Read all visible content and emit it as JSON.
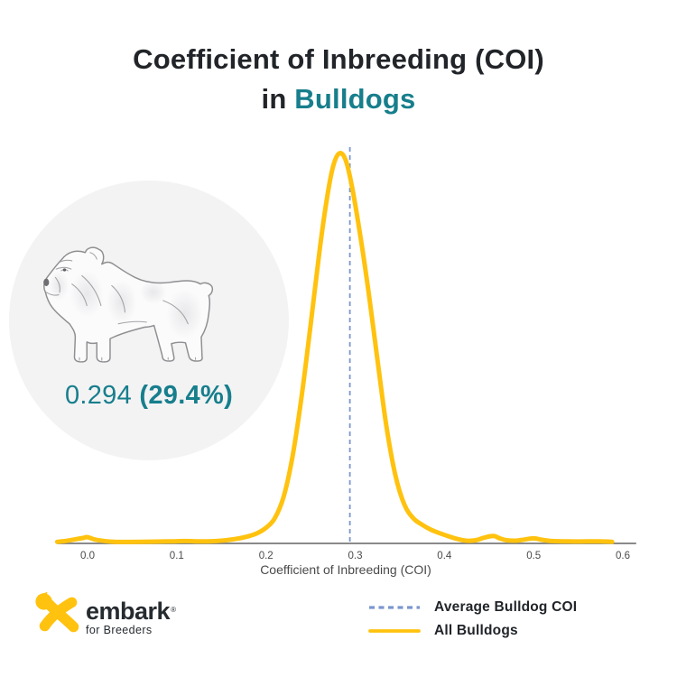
{
  "title": {
    "line1": "Coefficient of Inbreeding (COI)",
    "line2_prefix": "in ",
    "line2_breed": "Bulldogs"
  },
  "coi_badge": {
    "value": "0.294 ",
    "percent": "(29.4%)"
  },
  "chart_data": {
    "type": "line",
    "subtype": "density-curve",
    "title": "Coefficient of Inbreeding (COI) in Bulldogs",
    "xlabel": "Coefficient of Inbreeding (COI)",
    "ylabel": "",
    "grid": false,
    "legend_position": "bottom-right",
    "xlim": [
      -0.034,
      0.615
    ],
    "x_ticks": [
      0.0,
      0.1,
      0.2,
      0.3,
      0.4,
      0.5,
      0.6
    ],
    "x_tick_labels": [
      "0.0",
      "0.1",
      "0.2",
      "0.3",
      "0.4",
      "0.5",
      "0.6"
    ],
    "average_line": {
      "x": 0.294,
      "label": "Average Bulldog COI",
      "style": "dashed"
    },
    "series": [
      {
        "name": "All Bulldogs",
        "y_units": "relative density (peak = 1)",
        "x": [
          -0.034,
          -0.025,
          -0.015,
          -0.005,
          0.0,
          0.01,
          0.03,
          0.06,
          0.09,
          0.11,
          0.13,
          0.15,
          0.165,
          0.18,
          0.19,
          0.2,
          0.21,
          0.22,
          0.23,
          0.24,
          0.25,
          0.26,
          0.268,
          0.275,
          0.282,
          0.289,
          0.296,
          0.305,
          0.315,
          0.325,
          0.335,
          0.345,
          0.355,
          0.365,
          0.375,
          0.385,
          0.395,
          0.405,
          0.415,
          0.425,
          0.435,
          0.445,
          0.455,
          0.462,
          0.47,
          0.48,
          0.49,
          0.5,
          0.51,
          0.52,
          0.54,
          0.56,
          0.575,
          0.588
        ],
        "y": [
          0.004,
          0.006,
          0.01,
          0.014,
          0.016,
          0.009,
          0.004,
          0.004,
          0.005,
          0.006,
          0.005,
          0.007,
          0.011,
          0.018,
          0.026,
          0.04,
          0.065,
          0.121,
          0.226,
          0.378,
          0.56,
          0.75,
          0.88,
          0.965,
          1.0,
          0.985,
          0.92,
          0.8,
          0.645,
          0.47,
          0.3,
          0.175,
          0.1,
          0.065,
          0.048,
          0.035,
          0.026,
          0.018,
          0.011,
          0.007,
          0.008,
          0.015,
          0.019,
          0.013,
          0.008,
          0.007,
          0.01,
          0.013,
          0.009,
          0.006,
          0.005,
          0.005,
          0.005,
          0.004
        ]
      }
    ]
  },
  "legend": {
    "items": [
      {
        "label": "Average Bulldog COI",
        "swatch": "dashed-blue"
      },
      {
        "label": "All Bulldogs",
        "swatch": "solid-yellow"
      }
    ]
  },
  "logo": {
    "brand": "embark",
    "mark_symbol": "®",
    "tagline": "for Breeders"
  },
  "colors": {
    "accent_teal": "#177E8C",
    "curve_yellow": "#FFC20E",
    "average_line_blue": "#7B96CF",
    "title_dark": "#212428",
    "axis_gray": "#7A7A7A",
    "circle_bg": "#F3F3F4"
  }
}
